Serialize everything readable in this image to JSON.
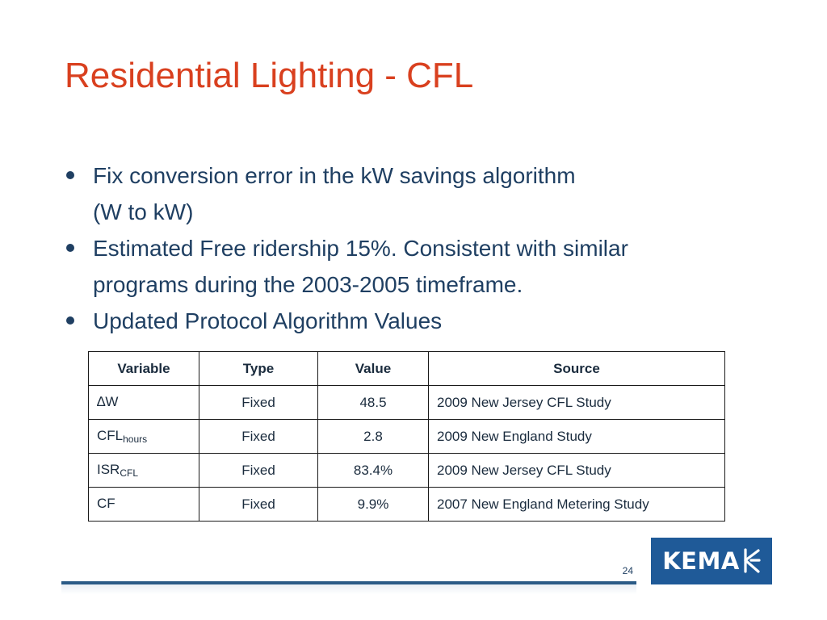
{
  "slide": {
    "title": "Residential Lighting - CFL",
    "page_number": "24"
  },
  "bullets": [
    {
      "lines": [
        "Fix conversion error in the kW savings algorithm",
        "(W to kW)"
      ]
    },
    {
      "lines": [
        "Estimated Free ridership 15%. Consistent with similar",
        "programs during the 2003-2005 timeframe."
      ]
    },
    {
      "lines": [
        "Updated Protocol Algorithm Values"
      ]
    }
  ],
  "table": {
    "headers": [
      "Variable",
      "Type",
      "Value",
      "Source"
    ],
    "rows": [
      {
        "variable": "∆W",
        "variable_sub": "",
        "type": "Fixed",
        "value": "48.5",
        "source": "2009 New Jersey CFL Study"
      },
      {
        "variable": "CFL",
        "variable_sub": "hours",
        "type": "Fixed",
        "value": "2.8",
        "source": "2009 New England Study"
      },
      {
        "variable": "ISR",
        "variable_sub": "CFL",
        "type": "Fixed",
        "value": "83.4%",
        "source": "2009 New Jersey CFL Study"
      },
      {
        "variable": "CF",
        "variable_sub": "",
        "type": "Fixed",
        "value": "9.9%",
        "source": "2007 New England Metering Study"
      }
    ]
  },
  "logo": {
    "text": "KEMA"
  },
  "colors": {
    "title": "#d9401f",
    "body_text": "#1f3f62",
    "logo_bg": "#1f5a98"
  }
}
